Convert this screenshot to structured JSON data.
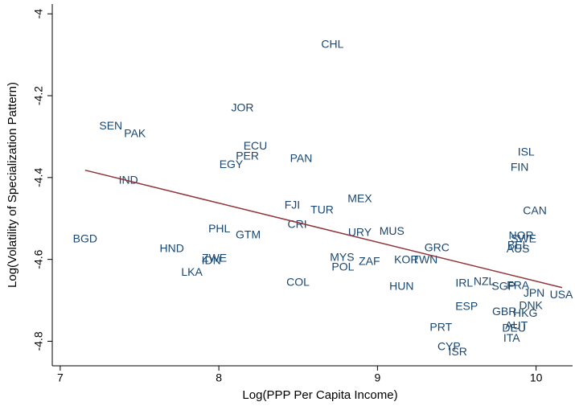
{
  "chart_data": {
    "type": "scatter",
    "x_label": "Log(PPP Per Capita Income)",
    "y_label": "Log(Volatility of Specialization Pattern)",
    "xlim": [
      6.95,
      10.23
    ],
    "ylim": [
      -4.86,
      -3.976
    ],
    "xticks": [
      7,
      8,
      9,
      10
    ],
    "yticks": [
      -4,
      -4.2,
      -4.4,
      -4.6,
      -4.8
    ],
    "color": "#1a476f",
    "fit_color": "#90353b",
    "series": [
      {
        "name": "Countries",
        "labels": [
          "CHL",
          "JOR",
          "SEN",
          "PAK",
          "ECU",
          "PER",
          "EGY",
          "PAN",
          "IND",
          "ISL",
          "FIN",
          "MEX",
          "FJI",
          "TUR",
          "CAN",
          "CRI",
          "PHL",
          "GTM",
          "URY",
          "MUS",
          "BGD",
          "NOR",
          "SWE",
          "HND",
          "GRC",
          "BEL",
          "AUS",
          "ZWE",
          "IDN",
          "MYS",
          "KOR",
          "TWN",
          "ZAF",
          "POL",
          "LKA",
          "COL",
          "IRL",
          "NZL",
          "SGP",
          "FRA",
          "HUN",
          "JPN",
          "USA",
          "DNK",
          "ESP",
          "GBR",
          "HKG",
          "AUT",
          "DEU",
          "PRT",
          "ITA",
          "CYP",
          "ISR"
        ],
        "x": [
          8.716,
          8.149,
          7.319,
          7.471,
          8.23,
          8.18,
          8.078,
          8.519,
          7.43,
          9.937,
          9.896,
          8.889,
          8.463,
          8.651,
          9.992,
          8.494,
          8.003,
          8.185,
          8.889,
          9.091,
          7.157,
          9.906,
          9.921,
          7.704,
          9.375,
          9.886,
          9.886,
          7.972,
          7.952,
          8.777,
          9.182,
          9.299,
          8.949,
          8.782,
          7.83,
          8.499,
          9.547,
          9.673,
          9.795,
          9.886,
          9.152,
          9.987,
          10.159,
          9.967,
          9.562,
          9.8,
          9.932,
          9.876,
          9.861,
          9.4,
          9.846,
          9.451,
          9.506
        ],
        "y": [
          -4.076,
          -4.231,
          -4.275,
          -4.294,
          -4.324,
          -4.349,
          -4.369,
          -4.355,
          -4.408,
          -4.339,
          -4.376,
          -4.453,
          -4.469,
          -4.48,
          -4.482,
          -4.516,
          -4.527,
          -4.541,
          -4.535,
          -4.533,
          -4.551,
          -4.543,
          -4.551,
          -4.575,
          -4.573,
          -4.567,
          -4.576,
          -4.598,
          -4.604,
          -4.596,
          -4.602,
          -4.602,
          -4.606,
          -4.62,
          -4.633,
          -4.657,
          -4.659,
          -4.655,
          -4.667,
          -4.665,
          -4.667,
          -4.684,
          -4.688,
          -4.714,
          -4.716,
          -4.729,
          -4.733,
          -4.763,
          -4.769,
          -4.767,
          -4.794,
          -4.814,
          -4.827
        ]
      }
    ],
    "fit": {
      "x": [
        7.157,
        10.164
      ],
      "y": [
        -4.382,
        -4.669
      ]
    }
  }
}
